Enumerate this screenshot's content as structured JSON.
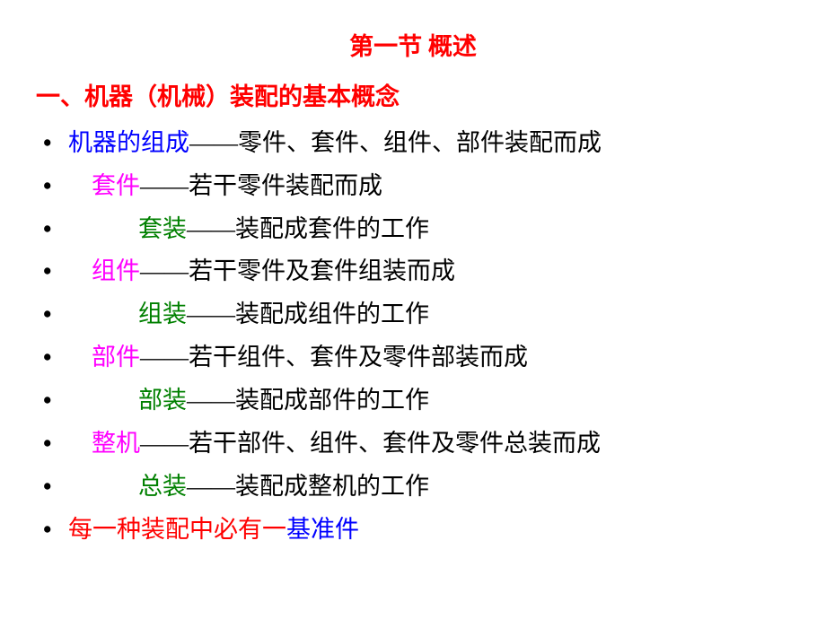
{
  "colors": {
    "red": "#ff0000",
    "blue": "#0000ff",
    "magenta": "#ff00ff",
    "green": "#008000",
    "black": "#000000"
  },
  "title": "第一节  概述",
  "heading": "一、机器（机械）装配的基本概念",
  "lines": {
    "line1": {
      "term": "机器的组成",
      "rest": "——零件、套件、组件、部件装配而成"
    },
    "line2": {
      "term": "套件",
      "rest": "——若干零件装配而成"
    },
    "line3": {
      "term": "套装",
      "rest": "——装配成套件的工作"
    },
    "line4": {
      "term": "组件",
      "rest": "——若干零件及套件组装而成"
    },
    "line5": {
      "term": "组装",
      "rest": "——装配成组件的工作"
    },
    "line6": {
      "term": "部件",
      "rest": "——若干组件、套件及零件部装而成"
    },
    "line7": {
      "term": "部装",
      "rest": "——装配成部件的工作"
    },
    "line8": {
      "term": "整机",
      "rest": "——若干部件、组件、套件及零件总装而成"
    },
    "line9": {
      "term": "总装",
      "rest": "——装配成整机的工作"
    },
    "line10": {
      "pre": "每一种装配中必有一",
      "term": "基准件"
    }
  },
  "bullet": "•"
}
